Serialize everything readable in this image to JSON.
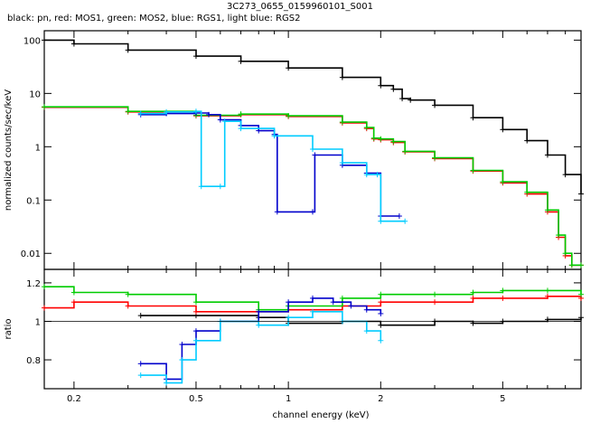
{
  "chart_data": {
    "type": "line",
    "title": "3C273_0655_0159960101_S001",
    "subtitle": "black: pn, red: MOS1, green: MOS2, blue: RGS1, light blue: RGS2",
    "xlabel": "channel energy (keV)",
    "xscale": "log",
    "xlim": [
      0.16,
      9.0
    ],
    "x_ticks": [
      0.2,
      0.5,
      1,
      2,
      5
    ],
    "x_tick_labels": [
      "0.2",
      "0.5",
      "1",
      "2",
      "5"
    ],
    "colors": {
      "pn": "#000000",
      "mos1": "#ff0000",
      "mos2": "#00cc00",
      "rgs1": "#0000cc",
      "rgs2": "#00ccff"
    },
    "panels": [
      {
        "name": "spectrum",
        "ylabel": "normalized counts/sec/keV",
        "yscale": "log",
        "ylim": [
          0.005,
          150
        ],
        "y_ticks": [
          0.01,
          0.1,
          1,
          10,
          100
        ],
        "y_tick_labels": [
          "0.01",
          "0.1",
          "1",
          "10",
          "100"
        ],
        "series": [
          {
            "name": "pn",
            "color": "#000000",
            "x": [
              0.16,
              0.2,
              0.3,
              0.5,
              0.7,
              1.0,
              1.5,
              2.0,
              2.2,
              2.35,
              2.5,
              3.0,
              4.0,
              5.0,
              6.0,
              7.0,
              8.0,
              9.0
            ],
            "y": [
              100,
              85,
              65,
              50,
              40,
              30,
              20,
              14,
              12,
              8,
              7.5,
              6,
              3.5,
              2.1,
              1.3,
              0.7,
              0.3,
              0.13
            ]
          },
          {
            "name": "MOS1",
            "color": "#ff0000",
            "x": [
              0.16,
              0.3,
              0.5,
              0.7,
              1.0,
              1.5,
              1.8,
              1.9,
              2.0,
              2.2,
              2.4,
              3.0,
              4.0,
              5.0,
              6.0,
              7.0,
              7.6,
              8.0,
              8.4,
              9.0
            ],
            "y": [
              5.5,
              4.5,
              3.8,
              4.0,
              3.7,
              2.8,
              2.2,
              1.4,
              1.35,
              1.2,
              0.8,
              0.6,
              0.35,
              0.21,
              0.13,
              0.06,
              0.02,
              0.009,
              0.006,
              0.006
            ]
          },
          {
            "name": "MOS2",
            "color": "#00cc00",
            "x": [
              0.16,
              0.3,
              0.5,
              0.7,
              1.0,
              1.5,
              1.8,
              1.9,
              2.0,
              2.2,
              2.4,
              3.0,
              4.0,
              5.0,
              6.0,
              7.0,
              7.6,
              8.0,
              8.4,
              9.0
            ],
            "y": [
              5.6,
              4.6,
              3.9,
              4.1,
              3.8,
              2.9,
              2.3,
              1.45,
              1.4,
              1.25,
              0.82,
              0.62,
              0.36,
              0.22,
              0.14,
              0.065,
              0.022,
              0.01,
              0.006,
              0.006
            ]
          },
          {
            "name": "RGS1",
            "color": "#0000cc",
            "x": [
              0.33,
              0.4,
              0.5,
              0.55,
              0.6,
              0.7,
              0.8,
              0.9,
              0.92,
              1.2,
              1.22,
              1.5,
              1.8,
              2.0,
              2.3
            ],
            "y": [
              4.0,
              4.2,
              4.3,
              4.0,
              3.2,
              2.5,
              2.0,
              1.7,
              0.06,
              0.06,
              0.7,
              0.45,
              0.32,
              0.05,
              0.05
            ]
          },
          {
            "name": "RGS2",
            "color": "#00ccff",
            "x": [
              0.33,
              0.4,
              0.5,
              0.52,
              0.6,
              0.62,
              0.7,
              0.9,
              1.2,
              1.5,
              1.8,
              1.95,
              2.0,
              2.4
            ],
            "y": [
              4.2,
              4.5,
              4.6,
              0.18,
              0.18,
              3.0,
              2.2,
              1.6,
              0.9,
              0.5,
              0.3,
              0.3,
              0.04,
              0.04
            ]
          }
        ]
      },
      {
        "name": "ratio",
        "ylabel": "ratio",
        "yscale": "linear",
        "ylim": [
          0.65,
          1.27
        ],
        "y_ticks": [
          0.8,
          1,
          1.2
        ],
        "y_tick_labels": [
          "0.8",
          "1",
          "1.2"
        ],
        "series": [
          {
            "name": "pn",
            "color": "#000000",
            "x": [
              0.33,
              0.5,
              0.8,
              1.0,
              1.5,
              2.0,
              3.0,
              4.0,
              5.0,
              7.0,
              9.0
            ],
            "y": [
              1.03,
              1.03,
              1.02,
              0.99,
              1.0,
              0.98,
              1.0,
              0.99,
              1.0,
              1.01,
              1.02
            ]
          },
          {
            "name": "MOS1",
            "color": "#ff0000",
            "x": [
              0.16,
              0.2,
              0.3,
              0.5,
              0.8,
              1.0,
              1.5,
              2.0,
              3.0,
              4.0,
              5.0,
              7.0,
              9.0
            ],
            "y": [
              1.07,
              1.1,
              1.08,
              1.05,
              1.05,
              1.06,
              1.08,
              1.1,
              1.1,
              1.12,
              1.12,
              1.13,
              1.12
            ]
          },
          {
            "name": "MOS2",
            "color": "#00cc00",
            "x": [
              0.16,
              0.2,
              0.3,
              0.5,
              0.8,
              1.0,
              1.5,
              2.0,
              3.0,
              4.0,
              5.0,
              7.0,
              9.0
            ],
            "y": [
              1.18,
              1.15,
              1.14,
              1.1,
              1.06,
              1.08,
              1.12,
              1.14,
              1.14,
              1.15,
              1.16,
              1.16,
              1.14
            ]
          },
          {
            "name": "RGS1",
            "color": "#0000cc",
            "x": [
              0.33,
              0.4,
              0.45,
              0.5,
              0.6,
              0.8,
              1.0,
              1.2,
              1.4,
              1.6,
              1.8,
              2.0
            ],
            "y": [
              0.78,
              0.7,
              0.88,
              0.95,
              1.0,
              1.05,
              1.1,
              1.12,
              1.1,
              1.08,
              1.06,
              1.04
            ]
          },
          {
            "name": "RGS2",
            "color": "#00ccff",
            "x": [
              0.33,
              0.4,
              0.45,
              0.5,
              0.6,
              0.8,
              1.0,
              1.2,
              1.5,
              1.8,
              2.0
            ],
            "y": [
              0.72,
              0.68,
              0.8,
              0.9,
              1.0,
              0.98,
              1.02,
              1.05,
              1.0,
              0.95,
              0.9
            ]
          }
        ]
      }
    ]
  }
}
